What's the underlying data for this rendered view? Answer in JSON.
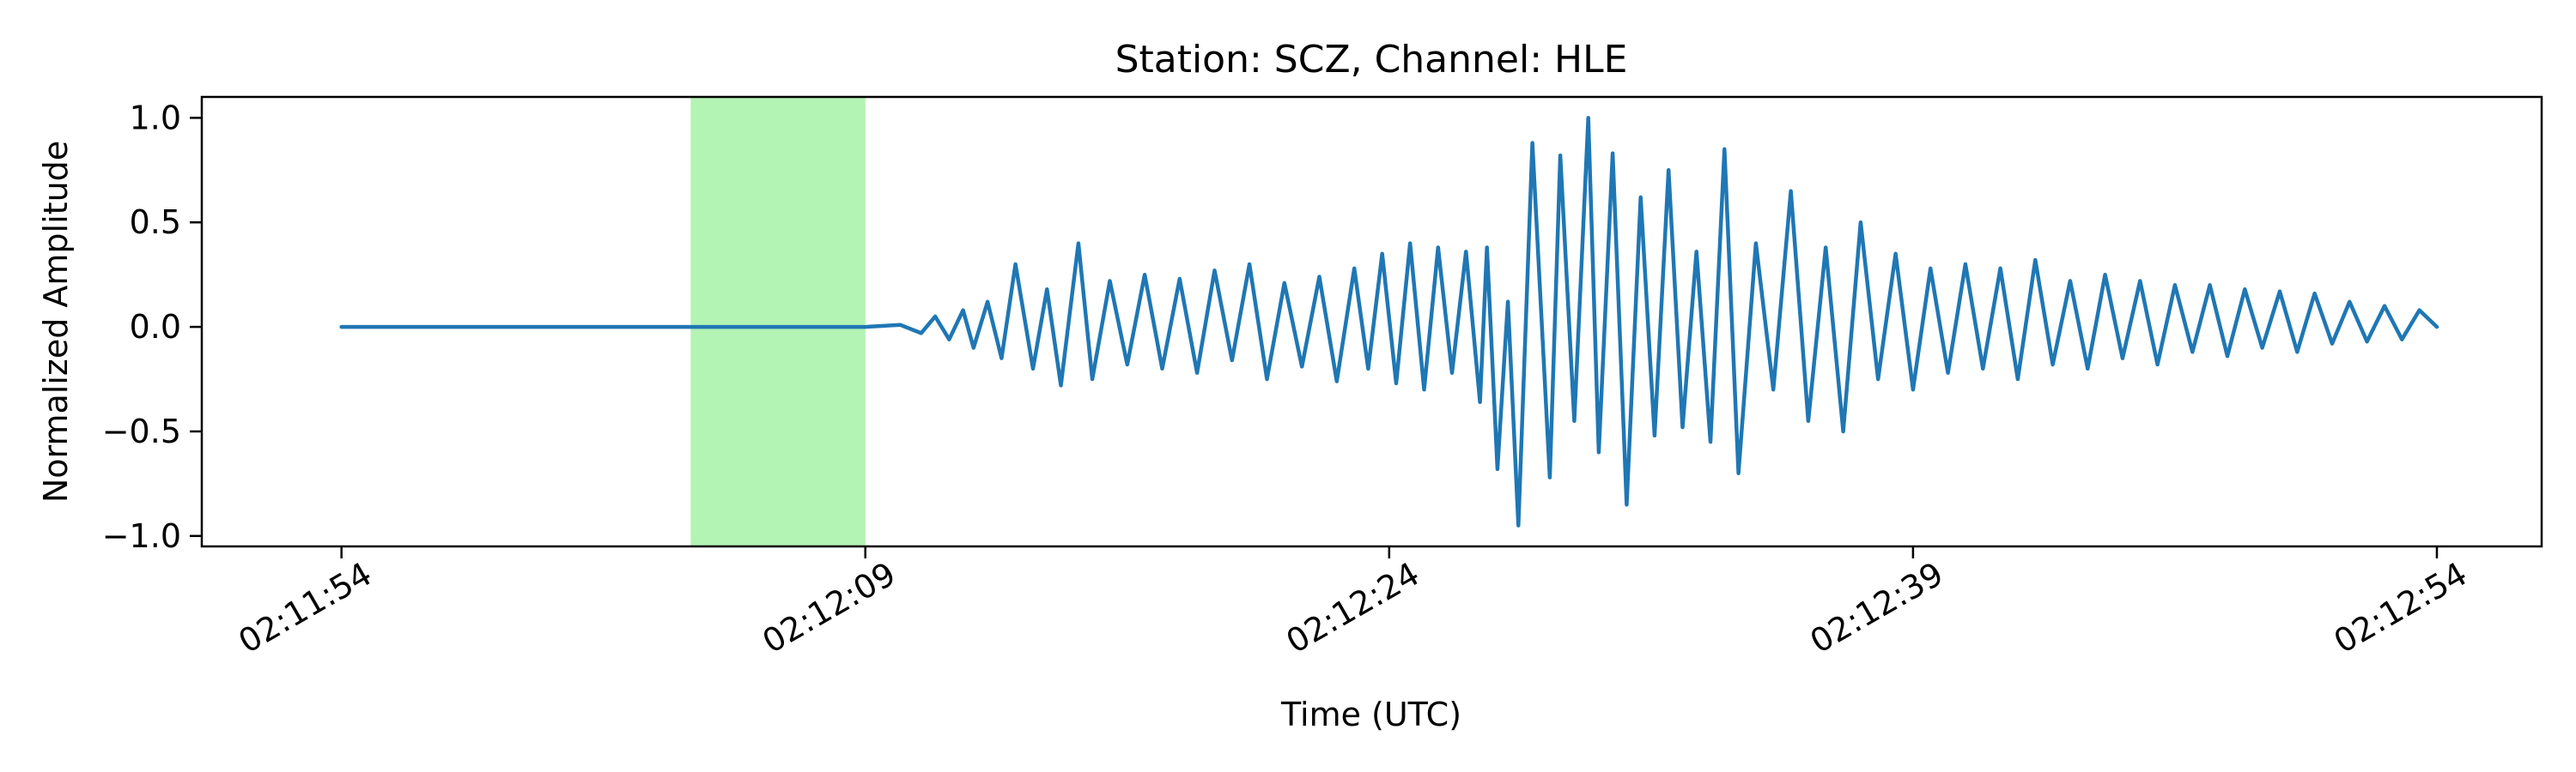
{
  "chart_data": {
    "type": "line",
    "title": "Station: SCZ, Channel: HLE",
    "xlabel": "Time (UTC)",
    "ylabel": "Normalized Amplitude",
    "x_unit": "time of day (UTC, HH:MM:SS)",
    "xlim": [
      "02:11:50",
      "02:12:57"
    ],
    "ylim": [
      -1.05,
      1.1
    ],
    "x_ticks": [
      "02:11:54",
      "02:12:09",
      "02:12:24",
      "02:12:39",
      "02:12:54"
    ],
    "y_ticks": [
      1.0,
      0.5,
      0.0,
      -0.5,
      -1.0
    ],
    "y_tick_labels": [
      "1.0",
      "0.5",
      "0.0",
      "−0.5",
      "−1.0"
    ],
    "grid": false,
    "legend": "none",
    "highlight_span": {
      "x_start": "02:12:04",
      "x_end": "02:12:09",
      "color": "#b3f3b3"
    },
    "series": [
      {
        "color": "#1f77b4",
        "x": [
          "02:11:54",
          "02:11:57",
          "02:12:00",
          "02:12:03",
          "02:12:06",
          "02:12:09",
          "02:12:10",
          "02:12:10.6",
          "02:12:11",
          "02:12:11.4",
          "02:12:11.8",
          "02:12:12.1",
          "02:12:12.5",
          "02:12:12.9",
          "02:12:13.3",
          "02:12:13.8",
          "02:12:14.2",
          "02:12:14.6",
          "02:12:15.1",
          "02:12:15.5",
          "02:12:16",
          "02:12:16.5",
          "02:12:17",
          "02:12:17.5",
          "02:12:18",
          "02:12:18.5",
          "02:12:19",
          "02:12:19.5",
          "02:12:20",
          "02:12:20.5",
          "02:12:21",
          "02:12:21.5",
          "02:12:22",
          "02:12:22.5",
          "02:12:23",
          "02:12:23.4",
          "02:12:23.8",
          "02:12:24.2",
          "02:12:24.6",
          "02:12:25",
          "02:12:25.4",
          "02:12:25.8",
          "02:12:26.2",
          "02:12:26.6",
          "02:12:26.8",
          "02:12:27.1",
          "02:12:27.4",
          "02:12:27.7",
          "02:12:28.1",
          "02:12:28.6",
          "02:12:28.9",
          "02:12:29.3",
          "02:12:29.7",
          "02:12:30",
          "02:12:30.4",
          "02:12:30.8",
          "02:12:31.2",
          "02:12:31.6",
          "02:12:32",
          "02:12:32.4",
          "02:12:32.8",
          "02:12:33.2",
          "02:12:33.6",
          "02:12:34",
          "02:12:34.5",
          "02:12:35",
          "02:12:35.5",
          "02:12:36",
          "02:12:36.5",
          "02:12:37",
          "02:12:37.5",
          "02:12:38",
          "02:12:38.5",
          "02:12:39",
          "02:12:39.5",
          "02:12:40",
          "02:12:40.5",
          "02:12:41",
          "02:12:41.5",
          "02:12:42",
          "02:12:42.5",
          "02:12:43",
          "02:12:43.5",
          "02:12:44",
          "02:12:44.5",
          "02:12:45",
          "02:12:45.5",
          "02:12:46",
          "02:12:46.5",
          "02:12:47",
          "02:12:47.5",
          "02:12:48",
          "02:12:48.5",
          "02:12:49",
          "02:12:49.5",
          "02:12:50",
          "02:12:50.5",
          "02:12:51",
          "02:12:51.5",
          "02:12:52",
          "02:12:52.5",
          "02:12:53",
          "02:12:53.5",
          "02:12:54"
        ],
        "y": [
          0.0,
          0.0,
          0.0,
          0.0,
          0.0,
          0.0,
          0.01,
          -0.03,
          0.05,
          -0.06,
          0.08,
          -0.1,
          0.12,
          -0.15,
          0.3,
          -0.2,
          0.18,
          -0.28,
          0.4,
          -0.25,
          0.22,
          -0.18,
          0.25,
          -0.2,
          0.23,
          -0.22,
          0.27,
          -0.16,
          0.3,
          -0.25,
          0.21,
          -0.19,
          0.24,
          -0.26,
          0.28,
          -0.2,
          0.35,
          -0.27,
          0.4,
          -0.3,
          0.38,
          -0.22,
          0.36,
          -0.36,
          0.38,
          -0.68,
          0.12,
          -0.95,
          0.88,
          -0.72,
          0.82,
          -0.45,
          1.0,
          -0.6,
          0.83,
          -0.85,
          0.62,
          -0.52,
          0.75,
          -0.48,
          0.36,
          -0.55,
          0.85,
          -0.7,
          0.4,
          -0.3,
          0.65,
          -0.45,
          0.38,
          -0.5,
          0.5,
          -0.25,
          0.35,
          -0.3,
          0.28,
          -0.22,
          0.3,
          -0.2,
          0.28,
          -0.25,
          0.32,
          -0.18,
          0.22,
          -0.2,
          0.25,
          -0.15,
          0.22,
          -0.18,
          0.2,
          -0.12,
          0.2,
          -0.14,
          0.18,
          -0.1,
          0.17,
          -0.12,
          0.16,
          -0.08,
          0.12,
          -0.07,
          0.1,
          -0.06,
          0.08,
          0.0
        ]
      }
    ]
  }
}
